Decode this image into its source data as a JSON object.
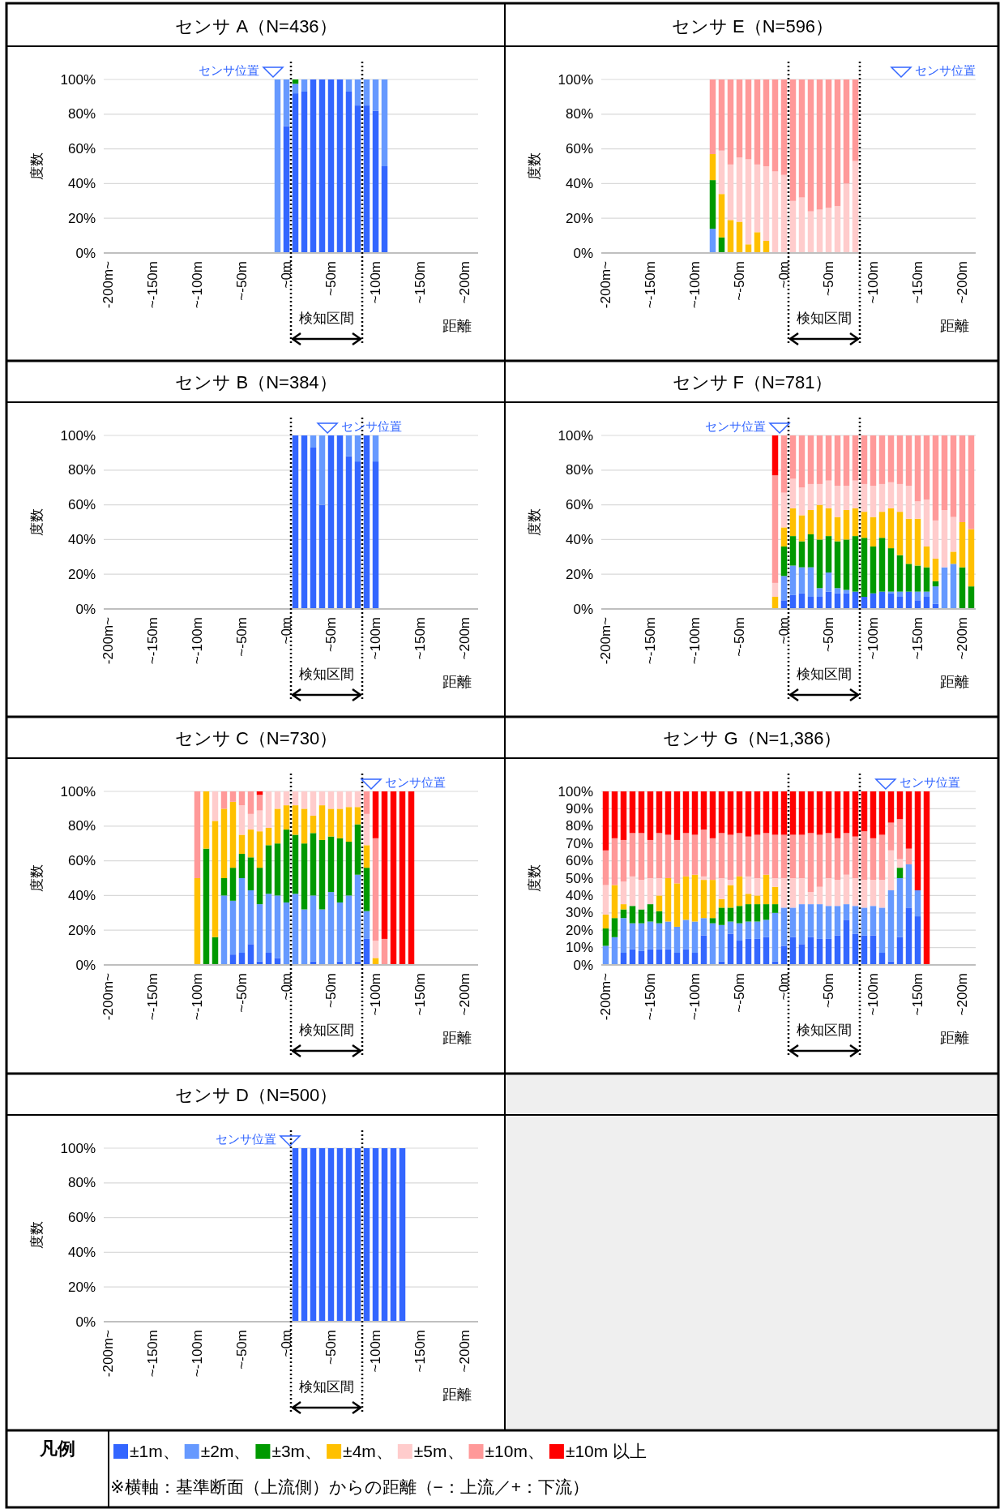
{
  "chart_data": [
    {
      "type": "bar",
      "stacked": true,
      "title": "センサ A（N=436）",
      "xlabel": "距離",
      "ylabel": "度数",
      "x": [
        -10,
        0,
        10,
        20,
        30,
        40,
        50,
        60,
        70,
        80,
        90,
        100,
        110
      ],
      "xlim": [
        -205,
        215
      ],
      "xticks": [
        {
          "value": -200,
          "label": "-200m~"
        },
        {
          "value": -150,
          "label": "~-150m"
        },
        {
          "value": -100,
          "label": "~-100m"
        },
        {
          "value": -50,
          "label": "~-50m"
        },
        {
          "value": 0,
          "label": "~0m"
        },
        {
          "value": 50,
          "label": "~50m"
        },
        {
          "value": 100,
          "label": "~100m"
        },
        {
          "value": 150,
          "label": "~150m"
        },
        {
          "value": 200,
          "label": "~200m"
        }
      ],
      "ylim": [
        0,
        100
      ],
      "yticks": [
        {
          "value": 0,
          "label": "0%"
        },
        {
          "value": 20,
          "label": "20%"
        },
        {
          "value": 40,
          "label": "40%"
        },
        {
          "value": 60,
          "label": "60%"
        },
        {
          "value": 80,
          "label": "80%"
        },
        {
          "value": 100,
          "label": "100%"
        }
      ],
      "grid": "y",
      "series": [
        {
          "color": "#3366ff",
          "values": [
            0,
            73,
            92,
            93,
            100,
            100,
            100,
            100,
            93,
            85,
            85,
            82,
            50
          ]
        },
        {
          "color": "#6699ff",
          "values": [
            100,
            27,
            5.5,
            7,
            0,
            0,
            0,
            0,
            7,
            15,
            15,
            18,
            50
          ]
        },
        {
          "color": "#009900",
          "values": [
            0,
            0,
            2.5,
            0,
            0,
            0,
            0,
            0,
            0,
            0,
            0,
            0,
            0
          ]
        }
      ],
      "ref_lines": [
        {
          "axis": "x",
          "value": 5,
          "line_style": "dotted",
          "color": "#000000"
        },
        {
          "axis": "x",
          "value": 85,
          "line_style": "dotted",
          "color": "#000000"
        }
      ],
      "annotations": [
        "検知区間",
        {
          "text": "センサ位置",
          "x": -15,
          "y": 100
        }
      ]
    },
    {
      "type": "bar",
      "stacked": true,
      "title": "センサ E（N=596）",
      "xlabel": "距離",
      "ylabel": "度数",
      "x": [
        -80,
        -70,
        -60,
        -50,
        -40,
        -30,
        -20,
        -10,
        0,
        10,
        20,
        30,
        40,
        50,
        60,
        70,
        80
      ],
      "xlim": [
        -205,
        215
      ],
      "xticks": [
        {
          "value": -200,
          "label": "-200m~"
        },
        {
          "value": -150,
          "label": "~-150m"
        },
        {
          "value": -100,
          "label": "~-100m"
        },
        {
          "value": -50,
          "label": "~-50m"
        },
        {
          "value": 0,
          "label": "~0m"
        },
        {
          "value": 50,
          "label": "~50m"
        },
        {
          "value": 100,
          "label": "~100m"
        },
        {
          "value": 150,
          "label": "~150m"
        },
        {
          "value": 200,
          "label": "~200m"
        }
      ],
      "ylim": [
        0,
        100
      ],
      "yticks": [
        {
          "value": 0,
          "label": "0%"
        },
        {
          "value": 20,
          "label": "20%"
        },
        {
          "value": 40,
          "label": "40%"
        },
        {
          "value": 60,
          "label": "60%"
        },
        {
          "value": 80,
          "label": "80%"
        },
        {
          "value": 100,
          "label": "100%"
        }
      ],
      "grid": "y",
      "series": [
        {
          "color": "#6699ff",
          "values": [
            14,
            0,
            0,
            0,
            0,
            0,
            0,
            0,
            0,
            0,
            0,
            0,
            0,
            0,
            0,
            0,
            0
          ]
        },
        {
          "color": "#009900",
          "values": [
            28,
            9,
            0,
            0,
            0,
            0,
            0,
            0,
            0,
            0,
            0,
            0,
            0,
            0,
            0,
            0,
            0
          ]
        },
        {
          "color": "#ffc000",
          "values": [
            15,
            25,
            19,
            18,
            5,
            12,
            7,
            0,
            0,
            0,
            0,
            0,
            0,
            0,
            0,
            0,
            0
          ]
        },
        {
          "color": "#ffcccc",
          "values": [
            0,
            25,
            32,
            37,
            49,
            39,
            43,
            47,
            45,
            30,
            32,
            24,
            25,
            26,
            27,
            40,
            53
          ]
        },
        {
          "color": "#ff9999",
          "values": [
            43,
            41,
            49,
            45,
            46,
            49,
            50,
            53,
            55,
            70,
            68,
            76,
            75,
            74,
            73,
            60,
            47
          ]
        }
      ],
      "ref_lines": [
        {
          "axis": "x",
          "value": 5,
          "line_style": "dotted",
          "color": "#000000"
        },
        {
          "axis": "x",
          "value": 85,
          "line_style": "dotted",
          "color": "#000000"
        }
      ],
      "annotations": [
        "検知区間",
        "センサ位置"
      ]
    },
    {
      "type": "bar",
      "stacked": true,
      "title": "センサ B（N=384）",
      "xlabel": "距離",
      "ylabel": "度数",
      "x": [
        10,
        20,
        30,
        40,
        50,
        60,
        70,
        80,
        90,
        100
      ],
      "xlim": [
        -205,
        215
      ],
      "xticks": [
        {
          "value": -200,
          "label": "-200m~"
        },
        {
          "value": -150,
          "label": "~-150m"
        },
        {
          "value": -100,
          "label": "~-100m"
        },
        {
          "value": -50,
          "label": "~-50m"
        },
        {
          "value": 0,
          "label": "~0m"
        },
        {
          "value": 50,
          "label": "~50m"
        },
        {
          "value": 100,
          "label": "~100m"
        },
        {
          "value": 150,
          "label": "~150m"
        },
        {
          "value": 200,
          "label": "~200m"
        }
      ],
      "ylim": [
        0,
        100
      ],
      "yticks": [
        {
          "value": 0,
          "label": "0%"
        },
        {
          "value": 20,
          "label": "20%"
        },
        {
          "value": 40,
          "label": "40%"
        },
        {
          "value": 60,
          "label": "60%"
        },
        {
          "value": 80,
          "label": "80%"
        },
        {
          "value": 100,
          "label": "100%"
        }
      ],
      "grid": "y",
      "series": [
        {
          "color": "#3366ff",
          "values": [
            100,
            100,
            93,
            60,
            100,
            100,
            88,
            85,
            100,
            85
          ]
        },
        {
          "color": "#6699ff",
          "values": [
            0,
            0,
            7,
            40,
            0,
            0,
            12,
            15,
            0,
            15
          ]
        }
      ],
      "ref_lines": [
        {
          "axis": "x",
          "value": 5,
          "line_style": "dotted",
          "color": "#000000"
        },
        {
          "axis": "x",
          "value": 85,
          "line_style": "dotted",
          "color": "#000000"
        }
      ],
      "annotations": [
        "検知区間",
        {
          "text": "センサ位置",
          "x": 46,
          "y": 100
        }
      ]
    },
    {
      "type": "bar",
      "stacked": true,
      "title": "センサ F（N=781）",
      "xlabel": "距離",
      "ylabel": "度数",
      "x": [
        -10,
        0,
        10,
        20,
        30,
        40,
        50,
        60,
        70,
        80,
        90,
        100,
        110,
        120,
        130,
        140,
        150,
        160,
        170,
        180,
        190,
        200,
        210
      ],
      "xlim": [
        -205,
        215
      ],
      "xticks": [
        {
          "value": -200,
          "label": "-200m~"
        },
        {
          "value": -150,
          "label": "~-150m"
        },
        {
          "value": -100,
          "label": "~-100m"
        },
        {
          "value": -50,
          "label": "~-50m"
        },
        {
          "value": 0,
          "label": "~0m"
        },
        {
          "value": 50,
          "label": "~50m"
        },
        {
          "value": 100,
          "label": "~100m"
        },
        {
          "value": 150,
          "label": "~150m"
        },
        {
          "value": 200,
          "label": "~200m"
        }
      ],
      "ylim": [
        0,
        100
      ],
      "yticks": [
        {
          "value": 0,
          "label": "0%"
        },
        {
          "value": 20,
          "label": "20%"
        },
        {
          "value": 40,
          "label": "40%"
        },
        {
          "value": 60,
          "label": "60%"
        },
        {
          "value": 80,
          "label": "80%"
        },
        {
          "value": 100,
          "label": "100%"
        }
      ],
      "grid": "y",
      "series": [
        {
          "color": "#3366ff",
          "values": [
            0,
            5,
            8,
            9,
            7,
            7,
            10,
            9,
            9,
            10,
            7,
            9,
            10,
            9,
            7,
            10,
            5,
            7,
            3,
            0,
            0,
            0,
            0
          ]
        },
        {
          "color": "#6699ff",
          "values": [
            0,
            14,
            17,
            15,
            17,
            5,
            11,
            3,
            2,
            0,
            0,
            0,
            0,
            1,
            3,
            0,
            5,
            3,
            10,
            24,
            26,
            0,
            0
          ]
        },
        {
          "color": "#009900",
          "values": [
            0,
            17,
            17,
            15,
            19,
            28,
            21,
            27,
            29,
            32,
            34,
            27,
            31,
            25,
            21,
            16,
            15,
            14,
            3,
            0,
            0,
            24,
            13
          ]
        },
        {
          "color": "#ffc000",
          "values": [
            7,
            11,
            16,
            15,
            14,
            20,
            16,
            14,
            17,
            16,
            15,
            17,
            15,
            23,
            25,
            26,
            27,
            12,
            13,
            0,
            7,
            26,
            33
          ]
        },
        {
          "color": "#ffcccc",
          "values": [
            8,
            20,
            17,
            16,
            15,
            12,
            16,
            18,
            14,
            16,
            16,
            18,
            16,
            15,
            16,
            19,
            10,
            27,
            22,
            33,
            20,
            0,
            0
          ]
        },
        {
          "color": "#ff9999",
          "values": [
            62,
            33,
            25,
            30,
            28,
            28,
            26,
            29,
            29,
            26,
            28,
            29,
            28,
            27,
            28,
            29,
            38,
            37,
            49,
            43,
            47,
            50,
            54
          ]
        },
        {
          "color": "#ff0000",
          "values": [
            23,
            0,
            0,
            0,
            0,
            0,
            0,
            0,
            0,
            0,
            0,
            0,
            0,
            0,
            0,
            0,
            0,
            0,
            0,
            0,
            0,
            0,
            0
          ]
        }
      ],
      "ref_lines": [
        {
          "axis": "x",
          "value": 5,
          "line_style": "dotted",
          "color": "#000000"
        },
        {
          "axis": "x",
          "value": 85,
          "line_style": "dotted",
          "color": "#000000"
        }
      ],
      "annotations": [
        "検知区間",
        {
          "text": "センサ位置",
          "x": -5,
          "y": 100
        }
      ]
    },
    {
      "type": "bar",
      "stacked": true,
      "title": "センサ C（N=730）",
      "xlabel": "距離",
      "ylabel": "度数",
      "x": [
        -100,
        -90,
        -80,
        -70,
        -60,
        -50,
        -40,
        -30,
        -20,
        -10,
        0,
        10,
        20,
        30,
        40,
        50,
        60,
        70,
        80,
        90,
        100,
        110,
        120,
        130,
        140
      ],
      "xlim": [
        -205,
        215
      ],
      "xticks": [
        {
          "value": -200,
          "label": "-200m~"
        },
        {
          "value": -150,
          "label": "~-150m"
        },
        {
          "value": -100,
          "label": "~-100m"
        },
        {
          "value": -50,
          "label": "~-50m"
        },
        {
          "value": 0,
          "label": "~0m"
        },
        {
          "value": 50,
          "label": "~50m"
        },
        {
          "value": 100,
          "label": "~100m"
        },
        {
          "value": 150,
          "label": "~150m"
        },
        {
          "value": 200,
          "label": "~200m"
        }
      ],
      "ylim": [
        0,
        100
      ],
      "yticks": [
        {
          "value": 0,
          "label": "0%"
        },
        {
          "value": 20,
          "label": "20%"
        },
        {
          "value": 40,
          "label": "40%"
        },
        {
          "value": 60,
          "label": "60%"
        },
        {
          "value": 80,
          "label": "80%"
        },
        {
          "value": 100,
          "label": "100%"
        }
      ],
      "grid": "y",
      "series": [
        {
          "color": "#3366ff",
          "values": [
            0,
            0,
            0,
            0,
            6,
            7,
            12,
            2,
            7,
            4,
            0,
            0,
            0,
            2,
            0,
            0,
            2,
            0,
            2,
            15,
            0,
            0,
            0,
            0,
            0
          ]
        },
        {
          "color": "#6699ff",
          "values": [
            0,
            0,
            0,
            40,
            31,
            43,
            31,
            33,
            34,
            36,
            36,
            41,
            32,
            38,
            32,
            42,
            34,
            40,
            50,
            16,
            0,
            0,
            0,
            0,
            0
          ]
        },
        {
          "color": "#009900",
          "values": [
            0,
            67,
            16,
            10,
            19,
            14,
            19,
            21,
            28,
            30,
            42,
            34,
            38,
            36,
            40,
            32,
            37,
            31,
            29,
            25,
            0,
            0,
            0,
            0,
            0
          ]
        },
        {
          "color": "#ffc000",
          "values": [
            50,
            33,
            67,
            40,
            38,
            11,
            16,
            21,
            10,
            20,
            14,
            17,
            20,
            10,
            20,
            16,
            17,
            20,
            10,
            13,
            4,
            0,
            0,
            0,
            0
          ]
        },
        {
          "color": "#ffcccc",
          "values": [
            0,
            0,
            17,
            0,
            0,
            17,
            9,
            12,
            21,
            10,
            8,
            8,
            10,
            14,
            8,
            10,
            10,
            9,
            9,
            18,
            10,
            0,
            0,
            0,
            0
          ]
        },
        {
          "color": "#ff9999",
          "values": [
            50,
            0,
            0,
            10,
            6,
            8,
            13,
            9,
            0,
            0,
            0,
            0,
            0,
            0,
            0,
            0,
            0,
            0,
            0,
            13,
            59,
            15,
            0,
            0,
            0
          ]
        },
        {
          "color": "#ff0000",
          "values": [
            0,
            0,
            0,
            0,
            0,
            0,
            0,
            2,
            0,
            0,
            0,
            0,
            0,
            0,
            0,
            0,
            0,
            0,
            0,
            0,
            27,
            85,
            100,
            100,
            100
          ]
        }
      ],
      "ref_lines": [
        {
          "axis": "x",
          "value": 5,
          "line_style": "dotted",
          "color": "#000000"
        },
        {
          "axis": "x",
          "value": 85,
          "line_style": "dotted",
          "color": "#000000"
        }
      ],
      "annotations": [
        "検知区間",
        {
          "text": "センサ位置",
          "x": 95,
          "y": 100
        }
      ]
    },
    {
      "type": "bar",
      "stacked": true,
      "title": "センサ G（N=1,386）",
      "xlabel": "距離",
      "ylabel": "度数",
      "x": [
        -200,
        -190,
        -180,
        -170,
        -160,
        -150,
        -140,
        -130,
        -120,
        -110,
        -100,
        -90,
        -80,
        -70,
        -60,
        -50,
        -40,
        -30,
        -20,
        -10,
        0,
        10,
        20,
        30,
        40,
        50,
        60,
        70,
        80,
        90,
        100,
        110,
        120,
        130,
        140,
        150,
        160
      ],
      "xlim": [
        -205,
        215
      ],
      "xticks": [
        {
          "value": -200,
          "label": "-200m~"
        },
        {
          "value": -150,
          "label": "~-150m"
        },
        {
          "value": -100,
          "label": "~-100m"
        },
        {
          "value": -50,
          "label": "~-50m"
        },
        {
          "value": 0,
          "label": "~0m"
        },
        {
          "value": 50,
          "label": "~50m"
        },
        {
          "value": 100,
          "label": "~100m"
        },
        {
          "value": 150,
          "label": "~150m"
        },
        {
          "value": 200,
          "label": "~200m"
        }
      ],
      "ylim": [
        0,
        100
      ],
      "yticks": [
        {
          "value": 0,
          "label": "0%"
        },
        {
          "value": 10,
          "label": "10%"
        },
        {
          "value": 20,
          "label": "20%"
        },
        {
          "value": 30,
          "label": "30%"
        },
        {
          "value": 40,
          "label": "40%"
        },
        {
          "value": 50,
          "label": "50%"
        },
        {
          "value": 60,
          "label": "60%"
        },
        {
          "value": 70,
          "label": "70%"
        },
        {
          "value": 80,
          "label": "80%"
        },
        {
          "value": 90,
          "label": "90%"
        },
        {
          "value": 100,
          "label": "100%"
        }
      ],
      "grid": "y",
      "series": [
        {
          "name": "±1m、",
          "color": "#3366ff",
          "values": [
            0,
            0,
            7,
            9,
            8,
            9,
            9,
            9,
            7,
            9,
            7,
            17,
            0,
            2,
            18,
            14,
            15,
            15,
            16,
            2,
            11,
            16,
            12,
            16,
            15,
            15,
            17,
            26,
            18,
            17,
            17,
            7,
            2,
            16,
            33,
            28,
            0
          ]
        },
        {
          "name": "±2m、",
          "color": "#6699ff",
          "values": [
            11,
            16,
            20,
            15,
            16,
            16,
            15,
            16,
            15,
            17,
            18,
            10,
            24,
            21,
            7,
            10,
            10,
            10,
            10,
            28,
            22,
            17,
            23,
            19,
            20,
            19,
            17,
            9,
            16,
            16,
            17,
            26,
            41,
            34,
            25,
            15,
            0
          ]
        },
        {
          "name": "±3m、",
          "color": "#009900",
          "values": [
            10,
            11,
            5,
            10,
            8,
            10,
            7,
            0,
            0,
            0,
            0,
            0,
            3,
            10,
            8,
            10,
            10,
            10,
            9,
            5,
            0,
            0,
            0,
            0,
            0,
            0,
            0,
            0,
            0,
            0,
            0,
            0,
            0,
            6,
            0,
            0,
            0
          ]
        },
        {
          "name": "±4m、",
          "color": "#ffc000",
          "values": [
            8,
            19,
            3,
            0,
            0,
            0,
            9,
            25,
            25,
            25,
            27,
            22,
            22,
            5,
            13,
            17,
            6,
            5,
            17,
            10,
            0,
            0,
            0,
            0,
            0,
            0,
            0,
            0,
            0,
            0,
            0,
            0,
            0,
            0,
            0,
            0,
            0
          ]
        },
        {
          "name": "±5m、",
          "color": "#ffcccc",
          "values": [
            17,
            0,
            13,
            17,
            17,
            15,
            10,
            0,
            0,
            0,
            0,
            2,
            0,
            12,
            3,
            0,
            10,
            10,
            0,
            5,
            17,
            17,
            15,
            7,
            10,
            16,
            15,
            17,
            16,
            16,
            15,
            16,
            23,
            5,
            0,
            0,
            0
          ]
        },
        {
          "name": "±10m、",
          "color": "#ff9999",
          "values": [
            20,
            27,
            24,
            25,
            27,
            22,
            26,
            25,
            25,
            25,
            23,
            27,
            24,
            26,
            26,
            25,
            23,
            25,
            24,
            25,
            25,
            25,
            25,
            34,
            30,
            26,
            24,
            24,
            24,
            28,
            24,
            26,
            16,
            23,
            9,
            0,
            0
          ]
        },
        {
          "name": "±10m 以上",
          "color": "#ff0000",
          "values": [
            34,
            27,
            28,
            24,
            24,
            28,
            24,
            25,
            28,
            24,
            25,
            22,
            27,
            24,
            25,
            24,
            26,
            25,
            24,
            25,
            25,
            25,
            25,
            24,
            25,
            24,
            27,
            24,
            26,
            23,
            27,
            25,
            18,
            16,
            33,
            57,
            100
          ]
        }
      ],
      "ref_lines": [
        {
          "axis": "x",
          "value": 5,
          "line_style": "dotted",
          "color": "#000000"
        },
        {
          "axis": "x",
          "value": 85,
          "line_style": "dotted",
          "color": "#000000"
        }
      ],
      "legend": "bottom",
      "legend_title": "凡例",
      "annotations": [
        "検知区間",
        {
          "text": "センサ位置",
          "x": 114,
          "y": 100
        },
        "※横軸：基準断面（上流側）からの距離（−：上流／+：下流）"
      ]
    },
    {
      "type": "bar",
      "stacked": true,
      "title": "センサ D（N=500）",
      "xlabel": "距離",
      "ylabel": "度数",
      "x": [
        10,
        20,
        30,
        40,
        50,
        60,
        70,
        80,
        90,
        100,
        110,
        120,
        130
      ],
      "xlim": [
        -205,
        215
      ],
      "xticks": [
        {
          "value": -200,
          "label": "-200m~"
        },
        {
          "value": -150,
          "label": "~-150m"
        },
        {
          "value": -100,
          "label": "~-100m"
        },
        {
          "value": -50,
          "label": "~-50m"
        },
        {
          "value": 0,
          "label": "~0m"
        },
        {
          "value": 50,
          "label": "~50m"
        },
        {
          "value": 100,
          "label": "~100m"
        },
        {
          "value": 150,
          "label": "~150m"
        },
        {
          "value": 200,
          "label": "~200m"
        }
      ],
      "ylim": [
        0,
        100
      ],
      "yticks": [
        {
          "value": 0,
          "label": "0%"
        },
        {
          "value": 20,
          "label": "20%"
        },
        {
          "value": 40,
          "label": "40%"
        },
        {
          "value": 60,
          "label": "60%"
        },
        {
          "value": 80,
          "label": "80%"
        },
        {
          "value": 100,
          "label": "100%"
        }
      ],
      "grid": "y",
      "series": [
        {
          "color": "#3366ff",
          "values": [
            100,
            100,
            100,
            100,
            100,
            100,
            100,
            100,
            100,
            100,
            100,
            100,
            100
          ]
        }
      ],
      "ref_lines": [
        {
          "axis": "x",
          "value": 5,
          "line_style": "dotted",
          "color": "#000000"
        },
        {
          "axis": "x",
          "value": 85,
          "line_style": "dotted",
          "color": "#000000"
        }
      ],
      "annotations": [
        "検知区間",
        {
          "text": "センサ位置",
          "x": 4,
          "y": 100
        }
      ]
    }
  ]
}
